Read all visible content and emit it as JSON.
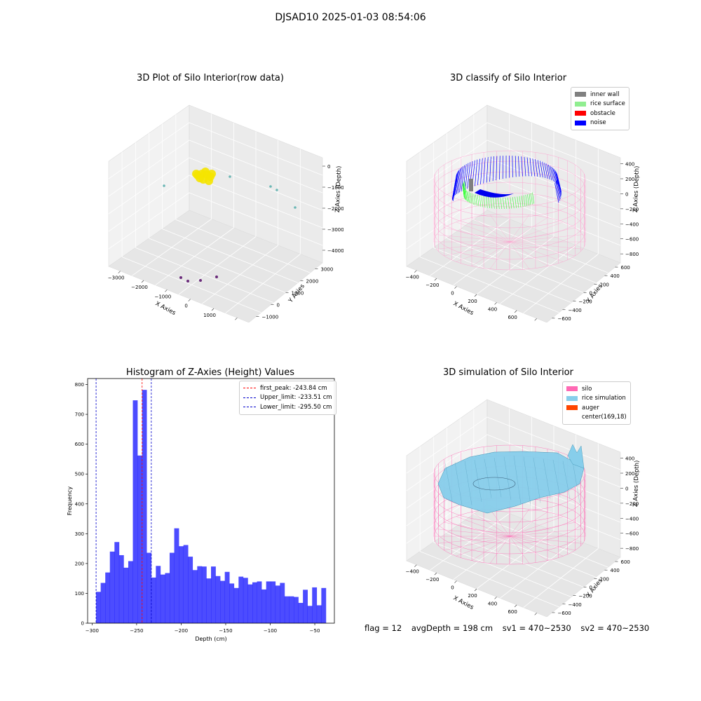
{
  "figure": {
    "suptitle": "DJSAD10 2025-01-03 08:54:06",
    "footer": {
      "flag": "flag = 12",
      "avg_depth": "avgDepth = 198 cm",
      "sv1": "sv1 = 470~2530",
      "sv2": "sv2 = 470~2530"
    }
  },
  "chart_data": [
    {
      "type": "scatter",
      "title": "3D Plot of Silo Interior(row data)",
      "xlabel": "X Axies",
      "ylabel": "Y Axies",
      "zlabel": "Z Axies (Depth)",
      "x_ticks": [
        "−3000",
        "−2000",
        "−1000",
        "0",
        "1000",
        "2000"
      ],
      "y_ticks": [
        "−1000",
        "0",
        "1000",
        "2000",
        "3000"
      ],
      "z_ticks": [
        "0",
        "−1000",
        "−2000",
        "−3000",
        "−4000"
      ],
      "points_description": "yellow dense cluster near origin at depth ~-2000; scattered teal outliers near -2000..-3000; purple outliers at about -4500",
      "colors": {
        "cluster": "#f5e400",
        "outlier_high": "#6cb7b5",
        "outlier_low": "#6a2a7a"
      }
    },
    {
      "type": "scatter",
      "title": "3D classify of Silo Interior",
      "xlabel": "X Axies",
      "ylabel": "Y Axies",
      "zlabel": "Z Axies (Depth)",
      "x_ticks": [
        "−400",
        "−200",
        "0",
        "200",
        "400",
        "600",
        "800"
      ],
      "y_ticks": [
        "−600",
        "−400",
        "−200",
        "0",
        "200",
        "400",
        "600"
      ],
      "z_ticks": [
        "400",
        "200",
        "0",
        "−200",
        "−400",
        "−600",
        "−800"
      ],
      "legend": [
        {
          "label": "inner wall",
          "color": "#808080"
        },
        {
          "label": "rice surface",
          "color": "#90ee90"
        },
        {
          "label": "obstacle",
          "color": "#ff0000"
        },
        {
          "label": "noise",
          "color": "#0000ff"
        }
      ]
    },
    {
      "type": "bar",
      "title": "Histogram of Z-Axies (Height) Values",
      "xlabel": "Depth (cm)",
      "ylabel": "Frequency",
      "xlim": [
        -305,
        -28
      ],
      "ylim": [
        0,
        820
      ],
      "x_ticks": [
        -300,
        -250,
        -200,
        -150,
        -100,
        -50
      ],
      "x_tick_labels": [
        "−300",
        "−250",
        "−200",
        "−150",
        "−100",
        "−50"
      ],
      "y_ticks": [
        0,
        100,
        200,
        300,
        400,
        500,
        600,
        700,
        800
      ],
      "bin_start": -295.5,
      "bin_width": 5.16,
      "values": [
        105,
        135,
        170,
        240,
        272,
        228,
        186,
        208,
        747,
        562,
        782,
        236,
        153,
        192,
        163,
        168,
        236,
        318,
        258,
        262,
        223,
        178,
        191,
        190,
        150,
        190,
        158,
        142,
        172,
        133,
        118,
        156,
        152,
        130,
        137,
        140,
        113,
        140,
        140,
        126,
        135,
        90,
        90,
        88,
        68,
        112,
        58,
        120,
        60,
        118
      ],
      "bar_color": "#0000ff",
      "lines": [
        {
          "label": "first_peak: -243.84 cm",
          "x": -243.84,
          "color": "#ff0000"
        },
        {
          "label": "Upper_limit: -233.51 cm",
          "x": -233.51,
          "color": "#0000cc"
        },
        {
          "label": "Lower_limit: -295.50 cm",
          "x": -295.5,
          "color": "#0000cc"
        }
      ]
    },
    {
      "type": "scatter",
      "title": "3D simulation of Silo Interior",
      "xlabel": "X Axies",
      "ylabel": "Y Axies",
      "zlabel": "Z Axies (Depth)",
      "x_ticks": [
        "−400",
        "−200",
        "0",
        "200",
        "400",
        "600",
        "800"
      ],
      "y_ticks": [
        "−600",
        "−400",
        "−200",
        "0",
        "200",
        "400",
        "600"
      ],
      "z_ticks": [
        "400",
        "200",
        "0",
        "−200",
        "−400",
        "−600",
        "−800"
      ],
      "legend": [
        {
          "label": "silo",
          "color": "#ff69b4"
        },
        {
          "label": "rice simulation",
          "color": "#87ceeb"
        },
        {
          "label": "auger",
          "color": "#ff4500"
        },
        {
          "label": "center(169,18)",
          "color": ""
        }
      ]
    }
  ]
}
